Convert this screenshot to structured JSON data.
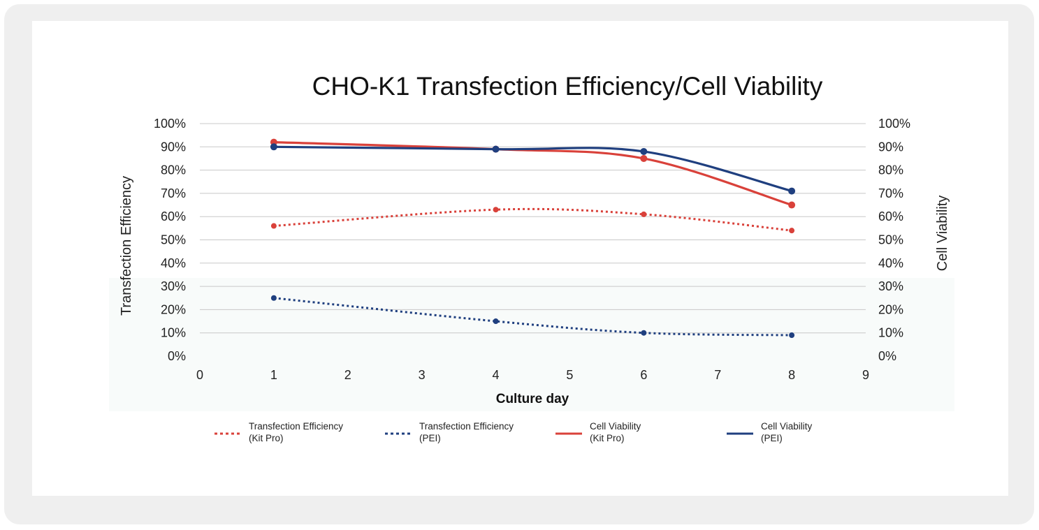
{
  "chart_data": {
    "type": "line",
    "title": "CHO-K1 Transfection Efficiency/Cell Viability",
    "xlabel": "Culture day",
    "ylabel_left": "Transfection Efficiency",
    "ylabel_right": "Cell Viability",
    "xlim": [
      0,
      9
    ],
    "x_ticks": [
      "0",
      "1",
      "2",
      "3",
      "4",
      "5",
      "6",
      "7",
      "8",
      "9"
    ],
    "ylim": [
      0,
      100
    ],
    "y_ticks": [
      "0%",
      "10%",
      "20%",
      "30%",
      "40%",
      "50%",
      "60%",
      "70%",
      "80%",
      "90%",
      "100%"
    ],
    "grid": true,
    "legend_position": "bottom",
    "series": [
      {
        "name": "Transfection Efficiency (Kit Pro)",
        "legend_lines": [
          "Transfection Efficiency",
          "(Kit Pro)"
        ],
        "axis": "left",
        "style": "dotted",
        "color": "#d9413a",
        "x": [
          1,
          4,
          6,
          8
        ],
        "y": [
          56,
          63,
          61,
          54
        ]
      },
      {
        "name": "Transfection Efficiency (PEI)",
        "legend_lines": [
          "Transfection Efficiency",
          "(PEI)"
        ],
        "axis": "left",
        "style": "dotted",
        "color": "#1f3f7f",
        "x": [
          1,
          4,
          6,
          8
        ],
        "y": [
          25,
          15,
          10,
          9
        ]
      },
      {
        "name": "Cell Viability (Kit Pro)",
        "legend_lines": [
          "Cell Viability",
          "(Kit Pro)"
        ],
        "axis": "right",
        "style": "solid",
        "color": "#d9413a",
        "x": [
          1,
          4,
          6,
          8
        ],
        "y": [
          92,
          89,
          85,
          65
        ]
      },
      {
        "name": "Cell Viability (PEI)",
        "legend_lines": [
          "Cell Viability",
          "(PEI)"
        ],
        "axis": "right",
        "style": "solid",
        "color": "#1f3f7f",
        "x": [
          1,
          4,
          6,
          8
        ],
        "y": [
          90,
          89,
          88,
          71
        ]
      }
    ]
  }
}
